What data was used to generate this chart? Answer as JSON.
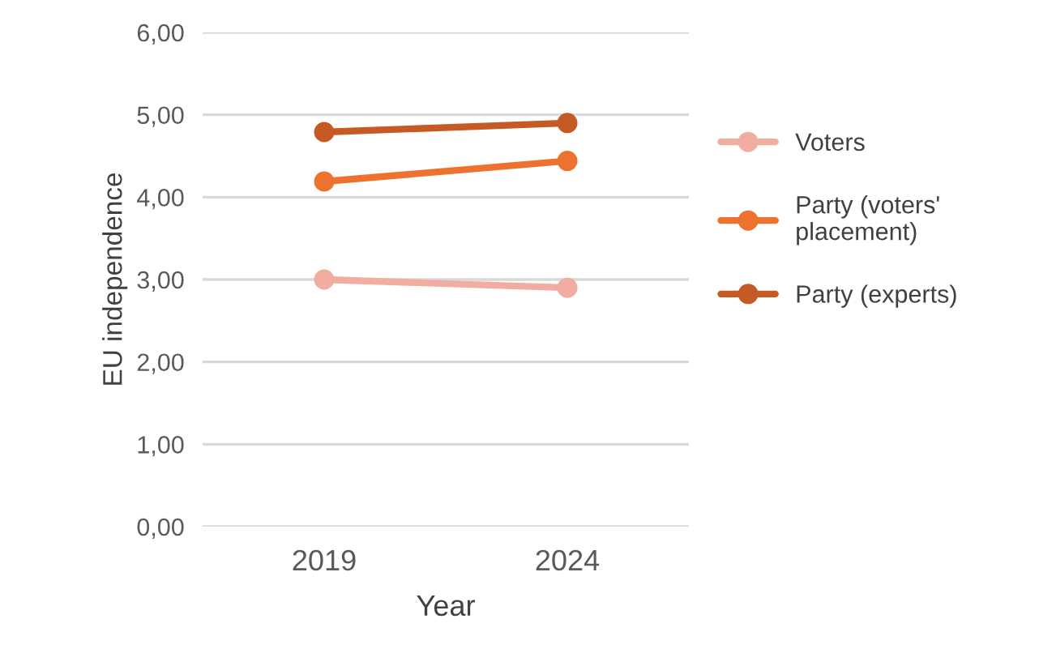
{
  "chart_data": {
    "type": "line",
    "xlabel": "Year",
    "ylabel": "EU independence",
    "categories": [
      "2019",
      "2024"
    ],
    "series": [
      {
        "name": "Voters",
        "color": "#f0ada0",
        "values": [
          3.0,
          2.9
        ]
      },
      {
        "name": "Party (voters'\nplacement)",
        "color": "#ed7230",
        "values": [
          4.19,
          4.44
        ]
      },
      {
        "name": "Party (experts)",
        "color": "#c55a24",
        "values": [
          4.79,
          4.9
        ]
      }
    ],
    "ylim": [
      0,
      6
    ],
    "yticks": [
      {
        "value": 0,
        "label": "0,00"
      },
      {
        "value": 1,
        "label": "1,00"
      },
      {
        "value": 2,
        "label": "2,00"
      },
      {
        "value": 3,
        "label": "3,00"
      },
      {
        "value": 4,
        "label": "4,00"
      },
      {
        "value": 5,
        "label": "5,00"
      },
      {
        "value": 6,
        "label": "6,00"
      }
    ],
    "grid": "y",
    "legend": "right",
    "marker": "circle",
    "line_style": "solid"
  }
}
